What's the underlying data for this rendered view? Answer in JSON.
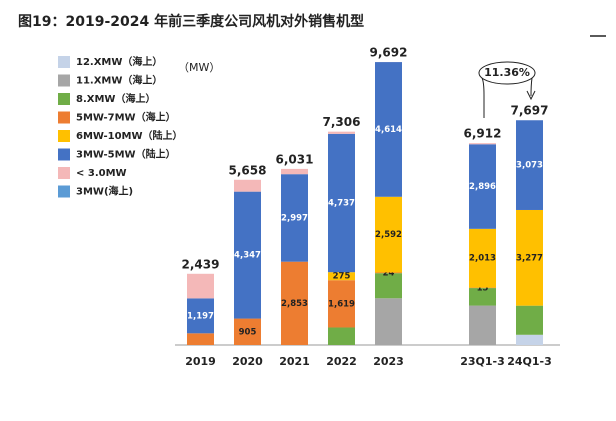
{
  "chart_data": {
    "type": "bar",
    "stacked": true,
    "title": "图19：2019-2024 年前三季度公司风机对外销售机型",
    "unit_label": "（MW）",
    "annotation": "11.36%",
    "categories": [
      "2019",
      "2020",
      "2021",
      "2022",
      "2023",
      null,
      "23Q1-3",
      "24Q1-3"
    ],
    "ylim": [
      0,
      10000
    ],
    "series": [
      {
        "name": "12.XMW（海上）",
        "color": "#c5d3e8",
        "values": [
          0,
          0,
          0,
          0,
          0,
          null,
          0,
          350
        ],
        "value_labels": [
          null,
          null,
          null,
          null,
          null,
          null,
          null,
          null
        ]
      },
      {
        "name": "11.XMW（海上）",
        "color": "#a6a6a6",
        "values": [
          0,
          0,
          0,
          0,
          1600,
          null,
          1350,
          0
        ],
        "value_labels": [
          null,
          null,
          null,
          null,
          null,
          null,
          null,
          null
        ]
      },
      {
        "name": "8.XMW（海上）",
        "color": "#70ad47",
        "values": [
          0,
          0,
          0,
          600,
          860,
          null,
          600,
          997
        ],
        "value_labels": [
          null,
          null,
          null,
          null,
          null,
          null,
          null,
          null
        ]
      },
      {
        "name": "5MW-7MW（海上）",
        "color": "#ed7d31",
        "values": [
          400,
          905,
          2853,
          1619,
          24,
          null,
          15,
          0
        ],
        "value_labels": [
          null,
          "905",
          "2,853",
          "1,619",
          "24",
          null,
          "15",
          null
        ]
      },
      {
        "name": "6MW-10MW（陆上）",
        "color": "#ffc000",
        "values": [
          0,
          0,
          0,
          275,
          2592,
          null,
          2013,
          3277
        ],
        "value_labels": [
          null,
          null,
          null,
          "275",
          "2,592",
          null,
          "2,013",
          "3,277"
        ]
      },
      {
        "name": "3MW-5MW（陆上）",
        "color": "#4472c4",
        "values": [
          1197,
          4347,
          2997,
          4737,
          4614,
          null,
          2896,
          3073
        ],
        "value_labels": [
          "1,197",
          "4,347",
          "2,997",
          "4,737",
          "4,614",
          null,
          "2,896",
          "3,073"
        ]
      },
      {
        "name": "< 3.0MW",
        "color": "#f4b8b8",
        "values": [
          842,
          406,
          181,
          75,
          2,
          null,
          38,
          0
        ],
        "value_labels": [
          null,
          null,
          null,
          null,
          null,
          null,
          null,
          null
        ]
      },
      {
        "name": "3MW(海上)",
        "color": "#5b9bd5",
        "values": [
          0,
          0,
          0,
          0,
          0,
          null,
          0,
          0
        ],
        "value_labels": [
          null,
          null,
          null,
          null,
          null,
          null,
          null,
          null
        ]
      }
    ],
    "totals": [
      2439,
      5658,
      6031,
      7306,
      9692,
      null,
      6912,
      7697
    ],
    "total_labels": [
      "2,439",
      "5,658",
      "6,031",
      "7,306",
      "9,692",
      null,
      "6,912",
      "7,697"
    ]
  }
}
